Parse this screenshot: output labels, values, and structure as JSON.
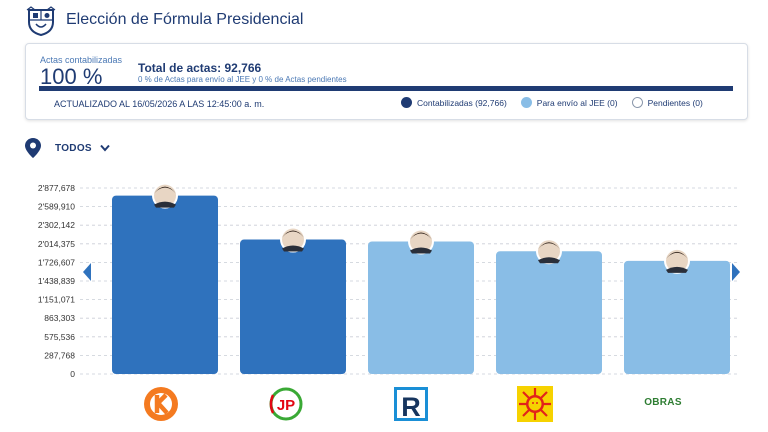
{
  "header": {
    "title": "Elección de Fórmula Presidencial",
    "crest_icon": "peru-coat-of-arms-icon"
  },
  "summary": {
    "actas_label": "Actas contabilizadas",
    "actas_pct": "100 %",
    "total_label": "Total de actas: 92,766",
    "sub_label": "0 % de Actas para envío al JEE y 0 % de Actas pendientes",
    "progress": 1.0,
    "updated": "ACTUALIZADO AL 16/05/2026 A LAS 12:45:00 a. m.",
    "legend": [
      {
        "label": "Contabilizadas (92,766)",
        "color": "#1f3b73"
      },
      {
        "label": "Para envío al JEE (0)",
        "color": "#89bde6"
      },
      {
        "label": "Pendientes (0)",
        "color": "#ffffff"
      }
    ]
  },
  "filter": {
    "label": "TODOS",
    "icon": "location-pin-icon"
  },
  "chart_data": {
    "type": "bar",
    "categories": [
      "Fuerza Popular",
      "Juntos por el Perú",
      "Renovación Popular",
      "Partido Cívico Obras",
      "Somos Perú"
    ],
    "values": [
      2760000,
      2080000,
      2050000,
      1900000,
      1750000
    ],
    "colors": [
      "#2f72bd",
      "#2f72bd",
      "#89bde6",
      "#89bde6",
      "#89bde6"
    ],
    "yticks": [
      0,
      287768,
      575536,
      863303,
      1151071,
      1438839,
      1726607,
      2014375,
      2302142,
      2589910,
      2877678
    ],
    "ytick_labels": [
      "0",
      "287,768",
      "575,536",
      "863,303",
      "1'151,071",
      "1'438,839",
      "1'726,607",
      "2'014,375",
      "2'302,142",
      "2'589,910",
      "2'877,678"
    ],
    "ylim": [
      0,
      2877678
    ],
    "grid": true,
    "bar_order_logos": [
      "k-orange-logo",
      "jp-logo",
      "r-logo",
      "sun-logo",
      "obras-logo"
    ]
  },
  "logos": {
    "obras_text": "OBRAS"
  },
  "nav": {
    "prev_icon": "chevron-left-icon",
    "next_icon": "chevron-right-icon"
  }
}
